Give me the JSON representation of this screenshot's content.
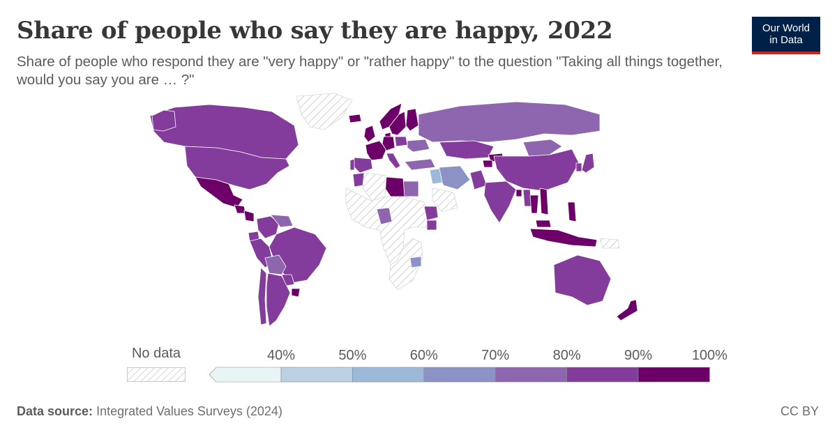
{
  "header": {
    "title": "Share of people who say they are happy, 2022",
    "subtitle": "Share of people who respond they are \"very happy\" or \"rather happy\" to the question \"Taking all things together, would you say you are … ?\""
  },
  "logo": {
    "line1": "Our World",
    "line2": "in Data",
    "background": "#002147",
    "accent": "#ce261e"
  },
  "legend": {
    "no_data_label": "No data",
    "tick_labels": [
      "40%",
      "50%",
      "60%",
      "70%",
      "80%",
      "90%",
      "100%"
    ],
    "bins": [
      {
        "range": "<40%",
        "color": "#e9f4f7"
      },
      {
        "range": "40–50%",
        "color": "#bcd0e4"
      },
      {
        "range": "50–60%",
        "color": "#9cb9da"
      },
      {
        "range": "60–70%",
        "color": "#8c92c6"
      },
      {
        "range": "70–80%",
        "color": "#8e66b0"
      },
      {
        "range": "80–90%",
        "color": "#833c9b"
      },
      {
        "range": "90–100%",
        "color": "#6c0068"
      }
    ]
  },
  "chart_data": {
    "type": "choropleth",
    "year": 2022,
    "unit": "%",
    "bins": [
      0,
      40,
      50,
      60,
      70,
      80,
      90,
      100
    ],
    "regions": [
      {
        "name": "Canada",
        "value": 86
      },
      {
        "name": "United States",
        "value": 84
      },
      {
        "name": "Mexico",
        "value": 93
      },
      {
        "name": "Guatemala",
        "value": 94
      },
      {
        "name": "Nicaragua",
        "value": 91
      },
      {
        "name": "Colombia",
        "value": 88
      },
      {
        "name": "Venezuela",
        "value": 72
      },
      {
        "name": "Ecuador",
        "value": 85
      },
      {
        "name": "Peru",
        "value": 84
      },
      {
        "name": "Brazil",
        "value": 86
      },
      {
        "name": "Bolivia",
        "value": 76
      },
      {
        "name": "Paraguay",
        "value": 88
      },
      {
        "name": "Argentina",
        "value": 84
      },
      {
        "name": "Uruguay",
        "value": 92
      },
      {
        "name": "Chile",
        "value": 83
      },
      {
        "name": "Greenland",
        "value": null
      },
      {
        "name": "Iceland",
        "value": 97
      },
      {
        "name": "Norway",
        "value": 93
      },
      {
        "name": "Sweden",
        "value": 94
      },
      {
        "name": "Finland",
        "value": 91
      },
      {
        "name": "Denmark",
        "value": 95
      },
      {
        "name": "United Kingdom",
        "value": 90
      },
      {
        "name": "France",
        "value": 91
      },
      {
        "name": "Spain",
        "value": 87
      },
      {
        "name": "Portugal",
        "value": 86
      },
      {
        "name": "Germany",
        "value": 90
      },
      {
        "name": "Poland",
        "value": 88
      },
      {
        "name": "Italy",
        "value": 88
      },
      {
        "name": "Ukraine",
        "value": 76
      },
      {
        "name": "Russia",
        "value": 78
      },
      {
        "name": "Turkey",
        "value": 76
      },
      {
        "name": "Iran",
        "value": 62
      },
      {
        "name": "Iraq",
        "value": 59
      },
      {
        "name": "Egypt",
        "value": 79
      },
      {
        "name": "Libya",
        "value": 95
      },
      {
        "name": "Morocco",
        "value": 84
      },
      {
        "name": "Algeria",
        "value": null
      },
      {
        "name": "Nigeria",
        "value": 74
      },
      {
        "name": "Ethiopia",
        "value": 85
      },
      {
        "name": "Kenya",
        "value": 88
      },
      {
        "name": "Zimbabwe",
        "value": 64
      },
      {
        "name": "Kazakhstan",
        "value": 88
      },
      {
        "name": "Kyrgyzstan",
        "value": 93
      },
      {
        "name": "Tajikistan",
        "value": 94
      },
      {
        "name": "Mongolia",
        "value": 72
      },
      {
        "name": "China",
        "value": 86
      },
      {
        "name": "South Korea",
        "value": 87
      },
      {
        "name": "Japan",
        "value": 88
      },
      {
        "name": "India",
        "value": 84
      },
      {
        "name": "Pakistan",
        "value": 85
      },
      {
        "name": "Bangladesh",
        "value": 92
      },
      {
        "name": "Myanmar",
        "value": 89
      },
      {
        "name": "Thailand",
        "value": 90
      },
      {
        "name": "Vietnam",
        "value": 92
      },
      {
        "name": "Malaysia",
        "value": 91
      },
      {
        "name": "Philippines",
        "value": 92
      },
      {
        "name": "Indonesia",
        "value": 95
      },
      {
        "name": "Papua New Guinea",
        "value": null
      },
      {
        "name": "Australia",
        "value": 83
      },
      {
        "name": "New Zealand",
        "value": 94
      }
    ]
  },
  "footer": {
    "source_label": "Data source:",
    "source_text": "Integrated Values Surveys (2024)",
    "license": "CC BY"
  }
}
